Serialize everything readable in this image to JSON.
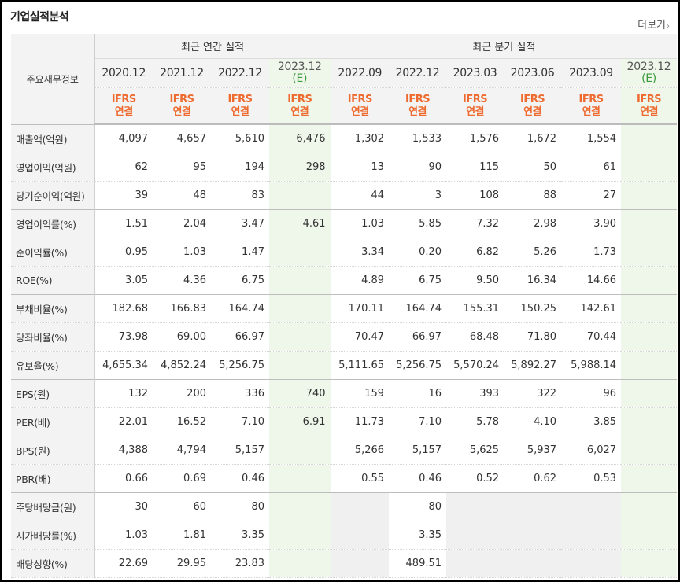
{
  "panel": {
    "title": "기업실적분석",
    "more_label": "더보기",
    "more_arrow": "›"
  },
  "header": {
    "row_header": "주요재무정보",
    "annual_group": "최근 연간 실적",
    "quarter_group": "최근 분기 실적",
    "annual_periods": [
      "2020.12",
      "2021.12",
      "2022.12",
      "2023.12"
    ],
    "annual_est_mark": "(E)",
    "quarter_periods": [
      "2022.09",
      "2022.12",
      "2023.03",
      "2023.06",
      "2023.09",
      "2023.12"
    ],
    "quarter_est_mark": "(E)",
    "basis_line1": "IFRS",
    "basis_line2": "연결"
  },
  "rows": [
    {
      "label": "매출액(억원)",
      "annual": [
        "4,097",
        "4,657",
        "5,610",
        "6,476"
      ],
      "quarter": [
        "1,302",
        "1,533",
        "1,576",
        "1,672",
        "1,554",
        ""
      ]
    },
    {
      "label": "영업이익(억원)",
      "annual": [
        "62",
        "95",
        "194",
        "298"
      ],
      "quarter": [
        "13",
        "90",
        "115",
        "50",
        "61",
        ""
      ]
    },
    {
      "label": "당기순이익(억원)",
      "annual": [
        "39",
        "48",
        "83",
        ""
      ],
      "quarter": [
        "44",
        "3",
        "108",
        "88",
        "27",
        ""
      ]
    },
    {
      "label": "영업이익률(%)",
      "annual": [
        "1.51",
        "2.04",
        "3.47",
        "4.61"
      ],
      "quarter": [
        "1.03",
        "5.85",
        "7.32",
        "2.98",
        "3.90",
        ""
      ]
    },
    {
      "label": "순이익률(%)",
      "annual": [
        "0.95",
        "1.03",
        "1.47",
        ""
      ],
      "quarter": [
        "3.34",
        "0.20",
        "6.82",
        "5.26",
        "1.73",
        ""
      ]
    },
    {
      "label": "ROE(%)",
      "annual": [
        "3.05",
        "4.36",
        "6.75",
        ""
      ],
      "quarter": [
        "4.89",
        "6.75",
        "9.50",
        "16.34",
        "14.66",
        ""
      ]
    },
    {
      "label": "부채비율(%)",
      "annual": [
        "182.68",
        "166.83",
        "164.74",
        ""
      ],
      "quarter": [
        "170.11",
        "164.74",
        "155.31",
        "150.25",
        "142.61",
        ""
      ]
    },
    {
      "label": "당좌비율(%)",
      "annual": [
        "73.98",
        "69.00",
        "66.97",
        ""
      ],
      "quarter": [
        "70.47",
        "66.97",
        "68.48",
        "71.80",
        "70.44",
        ""
      ]
    },
    {
      "label": "유보율(%)",
      "annual": [
        "4,655.34",
        "4,852.24",
        "5,256.75",
        ""
      ],
      "quarter": [
        "5,111.65",
        "5,256.75",
        "5,570.24",
        "5,892.27",
        "5,988.14",
        ""
      ]
    },
    {
      "label": "EPS(원)",
      "annual": [
        "132",
        "200",
        "336",
        "740"
      ],
      "quarter": [
        "159",
        "16",
        "393",
        "322",
        "96",
        ""
      ]
    },
    {
      "label": "PER(배)",
      "annual": [
        "22.01",
        "16.52",
        "7.10",
        "6.91"
      ],
      "quarter": [
        "11.73",
        "7.10",
        "5.78",
        "4.10",
        "3.85",
        ""
      ]
    },
    {
      "label": "BPS(원)",
      "annual": [
        "4,388",
        "4,794",
        "5,157",
        ""
      ],
      "quarter": [
        "5,266",
        "5,157",
        "5,625",
        "5,937",
        "6,027",
        ""
      ]
    },
    {
      "label": "PBR(배)",
      "annual": [
        "0.66",
        "0.69",
        "0.46",
        ""
      ],
      "quarter": [
        "0.55",
        "0.46",
        "0.52",
        "0.62",
        "0.53",
        ""
      ]
    },
    {
      "label": "주당배당금(원)",
      "annual": [
        "30",
        "60",
        "80",
        ""
      ],
      "quarter": [
        "",
        "80",
        "",
        "",
        "",
        ""
      ]
    },
    {
      "label": "시가배당률(%)",
      "annual": [
        "1.03",
        "1.81",
        "3.35",
        ""
      ],
      "quarter": [
        "",
        "3.35",
        "",
        "",
        "",
        ""
      ]
    },
    {
      "label": "배당성향(%)",
      "annual": [
        "22.69",
        "29.95",
        "23.83",
        ""
      ],
      "quarter": [
        "",
        "489.51",
        "",
        "",
        "",
        ""
      ]
    }
  ],
  "colors": {
    "basis_orange": "#ee6a2e",
    "estimate_bg": "#eef7ea",
    "estimate_mark": "#3b9a3b",
    "header_bg": "#f3f3f3"
  }
}
